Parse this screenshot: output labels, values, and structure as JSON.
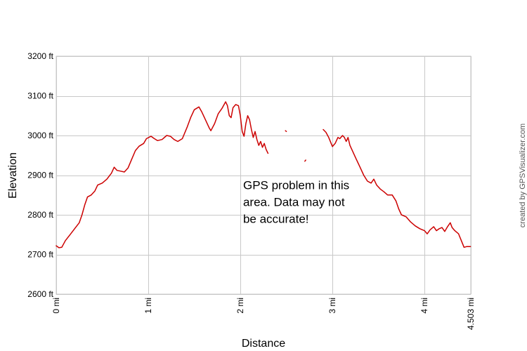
{
  "chart_data": {
    "type": "line",
    "title": "",
    "xlabel": "Distance",
    "ylabel": "Elevation",
    "xlim": [
      0,
      4.503
    ],
    "ylim": [
      2600,
      3200
    ],
    "grid": true,
    "x_ticks": [
      {
        "value": 0,
        "label": "0 mi"
      },
      {
        "value": 1,
        "label": "1 mi"
      },
      {
        "value": 2,
        "label": "2 mi"
      },
      {
        "value": 3,
        "label": "3 mi"
      },
      {
        "value": 4,
        "label": "4 mi"
      },
      {
        "value": 4.503,
        "label": "4.503 mi"
      }
    ],
    "y_ticks": [
      {
        "value": 2600,
        "label": "2600 ft"
      },
      {
        "value": 2700,
        "label": "2700 ft"
      },
      {
        "value": 2800,
        "label": "2800 ft"
      },
      {
        "value": 2900,
        "label": "2900 ft"
      },
      {
        "value": 3000,
        "label": "3000 ft"
      },
      {
        "value": 3100,
        "label": "3100 ft"
      },
      {
        "value": 3200,
        "label": "3200 ft"
      }
    ],
    "annotation": {
      "lines": [
        "GPS problem in this",
        "area. Data may not",
        "be accurate!"
      ],
      "x": 2.03,
      "y": 2865
    },
    "credit": "created by GPSVisualizer.com",
    "line_color": "#cc0000",
    "series": [
      {
        "segments": [
          [
            [
              0.0,
              2722
            ],
            [
              0.03,
              2717
            ],
            [
              0.06,
              2718
            ],
            [
              0.1,
              2735
            ],
            [
              0.15,
              2750
            ],
            [
              0.2,
              2765
            ],
            [
              0.25,
              2780
            ],
            [
              0.28,
              2800
            ],
            [
              0.31,
              2825
            ],
            [
              0.34,
              2845
            ],
            [
              0.38,
              2850
            ],
            [
              0.42,
              2860
            ],
            [
              0.45,
              2875
            ],
            [
              0.5,
              2880
            ],
            [
              0.55,
              2890
            ],
            [
              0.6,
              2905
            ],
            [
              0.63,
              2920
            ],
            [
              0.66,
              2912
            ],
            [
              0.7,
              2910
            ],
            [
              0.74,
              2908
            ],
            [
              0.78,
              2918
            ],
            [
              0.82,
              2940
            ],
            [
              0.86,
              2962
            ],
            [
              0.9,
              2973
            ],
            [
              0.95,
              2980
            ],
            [
              0.98,
              2992
            ],
            [
              1.03,
              2998
            ],
            [
              1.06,
              2993
            ],
            [
              1.1,
              2987
            ],
            [
              1.15,
              2990
            ],
            [
              1.2,
              3000
            ],
            [
              1.24,
              2998
            ],
            [
              1.28,
              2990
            ],
            [
              1.32,
              2985
            ],
            [
              1.37,
              2992
            ],
            [
              1.42,
              3020
            ],
            [
              1.46,
              3045
            ],
            [
              1.5,
              3065
            ],
            [
              1.55,
              3072
            ],
            [
              1.58,
              3060
            ],
            [
              1.62,
              3040
            ],
            [
              1.66,
              3020
            ],
            [
              1.68,
              3012
            ],
            [
              1.72,
              3030
            ],
            [
              1.76,
              3055
            ],
            [
              1.8,
              3068
            ],
            [
              1.84,
              3085
            ],
            [
              1.86,
              3075
            ],
            [
              1.88,
              3050
            ],
            [
              1.9,
              3045
            ],
            [
              1.92,
              3070
            ],
            [
              1.95,
              3078
            ],
            [
              1.98,
              3075
            ],
            [
              2.0,
              3050
            ],
            [
              2.02,
              3010
            ],
            [
              2.04,
              2998
            ],
            [
              2.06,
              3030
            ],
            [
              2.08,
              3050
            ],
            [
              2.1,
              3040
            ],
            [
              2.12,
              3015
            ],
            [
              2.14,
              2995
            ],
            [
              2.16,
              3010
            ],
            [
              2.18,
              2990
            ],
            [
              2.2,
              2975
            ],
            [
              2.22,
              2985
            ],
            [
              2.24,
              2970
            ],
            [
              2.26,
              2980
            ],
            [
              2.28,
              2965
            ],
            [
              2.3,
              2955
            ]
          ],
          [
            [
              2.49,
              3012
            ],
            [
              2.5,
              3010
            ]
          ],
          [
            [
              2.7,
              2935
            ],
            [
              2.71,
              2938
            ]
          ],
          [
            [
              2.9,
              3015
            ],
            [
              2.93,
              3008
            ],
            [
              2.96,
              2995
            ],
            [
              3.0,
              2972
            ],
            [
              3.03,
              2980
            ],
            [
              3.06,
              2995
            ],
            [
              3.08,
              2992
            ],
            [
              3.11,
              3000
            ],
            [
              3.13,
              2995
            ],
            [
              3.15,
              2985
            ],
            [
              3.17,
              2995
            ],
            [
              3.19,
              2975
            ],
            [
              3.22,
              2960
            ],
            [
              3.26,
              2940
            ],
            [
              3.3,
              2920
            ],
            [
              3.34,
              2900
            ],
            [
              3.38,
              2885
            ],
            [
              3.42,
              2880
            ],
            [
              3.45,
              2890
            ],
            [
              3.48,
              2875
            ],
            [
              3.52,
              2865
            ],
            [
              3.56,
              2858
            ],
            [
              3.6,
              2850
            ],
            [
              3.65,
              2850
            ],
            [
              3.69,
              2835
            ],
            [
              3.72,
              2815
            ],
            [
              3.75,
              2800
            ],
            [
              3.8,
              2795
            ],
            [
              3.85,
              2782
            ],
            [
              3.9,
              2772
            ],
            [
              3.95,
              2765
            ],
            [
              4.0,
              2760
            ],
            [
              4.03,
              2752
            ],
            [
              4.06,
              2762
            ],
            [
              4.1,
              2770
            ],
            [
              4.13,
              2760
            ],
            [
              4.16,
              2765
            ],
            [
              4.19,
              2768
            ],
            [
              4.22,
              2758
            ],
            [
              4.25,
              2770
            ],
            [
              4.28,
              2780
            ],
            [
              4.3,
              2768
            ],
            [
              4.33,
              2760
            ],
            [
              4.37,
              2752
            ],
            [
              4.4,
              2735
            ],
            [
              4.43,
              2718
            ],
            [
              4.46,
              2720
            ],
            [
              4.5,
              2720
            ]
          ]
        ]
      }
    ]
  }
}
